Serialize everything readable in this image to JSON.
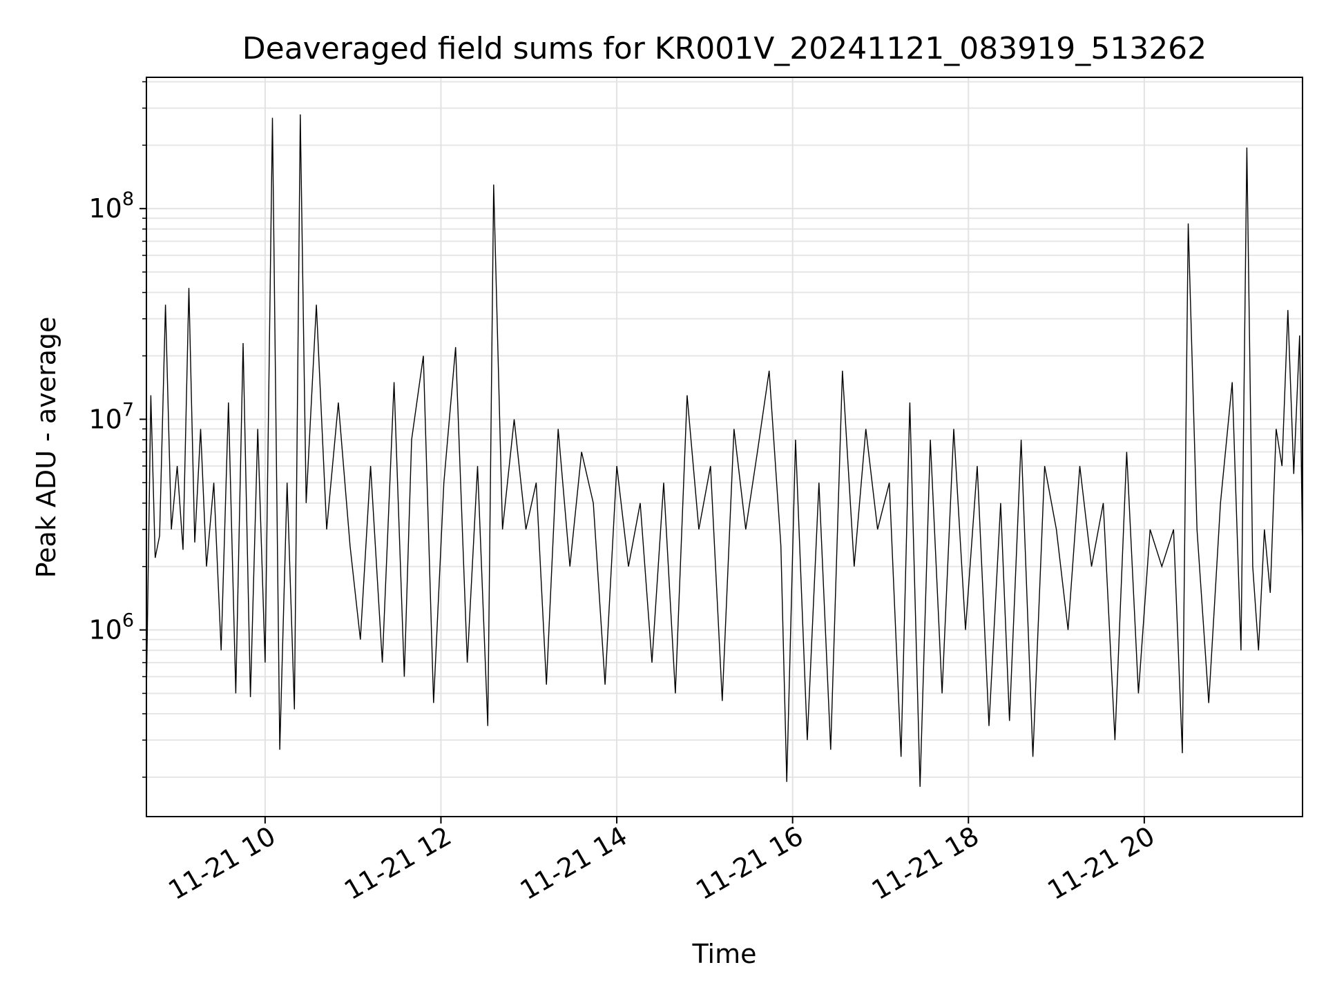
{
  "chart_data": {
    "type": "line",
    "title": "Deaveraged field sums for KR001V_20241121_083919_513262",
    "xlabel": "Time",
    "ylabel": "Peak ADU - average",
    "yscale": "log",
    "grid": true,
    "legend": "none",
    "xlim": [
      "2024-11-21 08:39",
      "2024-11-21 21:48"
    ],
    "ylim": [
      130000,
      420000000
    ],
    "x_ticks": [
      {
        "value": "2024-11-21 10:00",
        "label": "11-21 10"
      },
      {
        "value": "2024-11-21 12:00",
        "label": "11-21 12"
      },
      {
        "value": "2024-11-21 14:00",
        "label": "11-21 14"
      },
      {
        "value": "2024-11-21 16:00",
        "label": "11-21 16"
      },
      {
        "value": "2024-11-21 18:00",
        "label": "11-21 18"
      },
      {
        "value": "2024-11-21 20:00",
        "label": "11-21 20"
      }
    ],
    "y_ticks": [
      {
        "value": 1000000,
        "base": "10",
        "exp": "6"
      },
      {
        "value": 10000000,
        "base": "10",
        "exp": "7"
      },
      {
        "value": 100000000,
        "base": "10",
        "exp": "8"
      }
    ],
    "series_color": "#000000",
    "series": [
      {
        "x": [
          "2024-11-21 08:39",
          "2024-11-21 08:42",
          "2024-11-21 08:45",
          "2024-11-21 08:48",
          "2024-11-21 08:52",
          "2024-11-21 08:56",
          "2024-11-21 09:00",
          "2024-11-21 09:04",
          "2024-11-21 09:08",
          "2024-11-21 09:12",
          "2024-11-21 09:16",
          "2024-11-21 09:20",
          "2024-11-21 09:25",
          "2024-11-21 09:30",
          "2024-11-21 09:35",
          "2024-11-21 09:40",
          "2024-11-21 09:45",
          "2024-11-21 09:50",
          "2024-11-21 09:55",
          "2024-11-21 10:00",
          "2024-11-21 10:05",
          "2024-11-21 10:10",
          "2024-11-21 10:15",
          "2024-11-21 10:20",
          "2024-11-21 10:24",
          "2024-11-21 10:28",
          "2024-11-21 10:35",
          "2024-11-21 10:42",
          "2024-11-21 10:50",
          "2024-11-21 10:58",
          "2024-11-21 11:05",
          "2024-11-21 11:12",
          "2024-11-21 11:20",
          "2024-11-21 11:28",
          "2024-11-21 11:35",
          "2024-11-21 11:40",
          "2024-11-21 11:48",
          "2024-11-21 11:55",
          "2024-11-21 12:02",
          "2024-11-21 12:10",
          "2024-11-21 12:18",
          "2024-11-21 12:25",
          "2024-11-21 12:32",
          "2024-11-21 12:36",
          "2024-11-21 12:42",
          "2024-11-21 12:50",
          "2024-11-21 12:58",
          "2024-11-21 13:05",
          "2024-11-21 13:12",
          "2024-11-21 13:20",
          "2024-11-21 13:28",
          "2024-11-21 13:36",
          "2024-11-21 13:44",
          "2024-11-21 13:52",
          "2024-11-21 14:00",
          "2024-11-21 14:08",
          "2024-11-21 14:16",
          "2024-11-21 14:24",
          "2024-11-21 14:32",
          "2024-11-21 14:40",
          "2024-11-21 14:48",
          "2024-11-21 14:56",
          "2024-11-21 15:04",
          "2024-11-21 15:12",
          "2024-11-21 15:20",
          "2024-11-21 15:28",
          "2024-11-21 15:36",
          "2024-11-21 15:44",
          "2024-11-21 15:52",
          "2024-11-21 15:56",
          "2024-11-21 16:02",
          "2024-11-21 16:10",
          "2024-11-21 16:18",
          "2024-11-21 16:26",
          "2024-11-21 16:34",
          "2024-11-21 16:42",
          "2024-11-21 16:50",
          "2024-11-21 16:58",
          "2024-11-21 17:06",
          "2024-11-21 17:14",
          "2024-11-21 17:20",
          "2024-11-21 17:27",
          "2024-11-21 17:34",
          "2024-11-21 17:42",
          "2024-11-21 17:50",
          "2024-11-21 17:58",
          "2024-11-21 18:06",
          "2024-11-21 18:14",
          "2024-11-21 18:22",
          "2024-11-21 18:28",
          "2024-11-21 18:36",
          "2024-11-21 18:44",
          "2024-11-21 18:52",
          "2024-11-21 19:00",
          "2024-11-21 19:08",
          "2024-11-21 19:16",
          "2024-11-21 19:24",
          "2024-11-21 19:32",
          "2024-11-21 19:40",
          "2024-11-21 19:48",
          "2024-11-21 19:56",
          "2024-11-21 20:04",
          "2024-11-21 20:12",
          "2024-11-21 20:20",
          "2024-11-21 20:26",
          "2024-11-21 20:30",
          "2024-11-21 20:36",
          "2024-11-21 20:44",
          "2024-11-21 20:52",
          "2024-11-21 21:00",
          "2024-11-21 21:06",
          "2024-11-21 21:10",
          "2024-11-21 21:14",
          "2024-11-21 21:18",
          "2024-11-21 21:22",
          "2024-11-21 21:26",
          "2024-11-21 21:30",
          "2024-11-21 21:34",
          "2024-11-21 21:38",
          "2024-11-21 21:42",
          "2024-11-21 21:46",
          "2024-11-21 21:48"
        ],
        "y": [
          500000,
          13000000,
          2200000,
          2800000,
          35000000,
          3000000,
          6000000,
          2400000,
          42000000,
          2600000,
          9000000,
          2000000,
          5000000,
          800000,
          12000000,
          500000,
          23000000,
          480000,
          9000000,
          700000,
          270000000,
          270000,
          5000000,
          420000,
          280000000,
          4000000,
          35000000,
          3000000,
          12000000,
          2500000,
          900000,
          6000000,
          700000,
          15000000,
          600000,
          8000000,
          20000000,
          450000,
          5000000,
          22000000,
          700000,
          6000000,
          350000,
          130000000,
          3000000,
          10000000,
          3000000,
          5000000,
          550000,
          9000000,
          2000000,
          7000000,
          4000000,
          550000,
          6000000,
          2000000,
          4000000,
          700000,
          5000000,
          500000,
          13000000,
          3000000,
          6000000,
          460000,
          9000000,
          3000000,
          7000000,
          17000000,
          2500000,
          190000,
          8000000,
          300000,
          5000000,
          270000,
          17000000,
          2000000,
          9000000,
          3000000,
          5000000,
          250000,
          12000000,
          180000,
          8000000,
          500000,
          9000000,
          1000000,
          6000000,
          350000,
          4000000,
          370000,
          8000000,
          250000,
          6000000,
          3000000,
          1000000,
          6000000,
          2000000,
          4000000,
          300000,
          7000000,
          500000,
          3000000,
          2000000,
          3000000,
          260000,
          85000000,
          3000000,
          450000,
          4000000,
          15000000,
          800000,
          195000000,
          2000000,
          800000,
          3000000,
          1500000,
          9000000,
          6000000,
          33000000,
          5500000,
          25000000,
          2300000
        ]
      }
    ]
  }
}
